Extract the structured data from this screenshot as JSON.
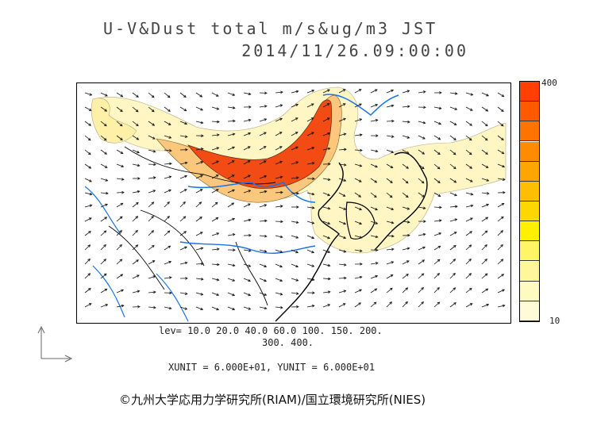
{
  "header": {
    "title_line1": "U-V&Dust total m/s&ug/m3 JST",
    "title_line2": "2014/11/26.09:00:00"
  },
  "legend": {
    "max_label": "400",
    "min_label": "10",
    "colors": [
      "#ff4000",
      "#ff5a00",
      "#ff7300",
      "#ff8c00",
      "#ffa500",
      "#ffbe00",
      "#ffd700",
      "#fff000",
      "#fff566",
      "#fff799",
      "#fffac0",
      "#fffbd8"
    ]
  },
  "levels": {
    "line1": "lev= 10.0 20.0 40.0 60.0 100. 150. 200.",
    "line2": "300. 400."
  },
  "units": {
    "text": "XUNIT = 6.000E+01, YUNIT = 6.000E+01"
  },
  "credit": {
    "text": "©九州大学応用力学研究所(RIAM)/国立環境研究所(NIES)"
  },
  "colors": {
    "dust_high": "#f24b14",
    "dust_mid": "#fbc77c",
    "dust_low": "#fff6c4",
    "coast": "#000000",
    "rivers": "#1a73e8",
    "arrows": "#111111"
  }
}
